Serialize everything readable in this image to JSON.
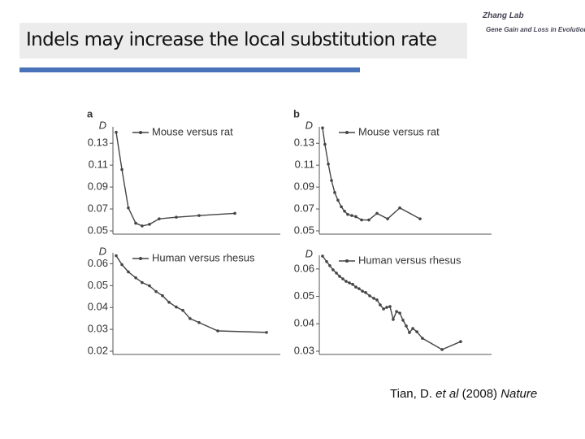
{
  "header": {
    "title": "Indels may increase the local substitution rate"
  },
  "logo": {
    "name": "Zhang Lab",
    "subtitle": "Gene Gain and Loss in Evolution"
  },
  "citation": [
    "Tian, D. ",
    "et al",
    " (2008) ",
    "Nature"
  ],
  "chart_data": [
    {
      "type": "line",
      "panel": "a",
      "ylabel": "D",
      "xlim": [
        0,
        100
      ],
      "ylim": [
        0.05,
        0.145
      ],
      "yticks": [
        0.05,
        0.07,
        0.09,
        0.11,
        0.13
      ],
      "series": [
        {
          "name": "Mouse versus rat",
          "color": "#444444",
          "x": [
            0,
            3.5,
            7.4,
            11.9,
            15.8,
            20.3,
            26.2,
            36.6,
            50.5,
            72.3
          ],
          "values": [
            0.14,
            0.106,
            0.071,
            0.057,
            0.0545,
            0.056,
            0.061,
            0.0625,
            0.064,
            0.066
          ]
        }
      ]
    },
    {
      "type": "line",
      "panel": "b",
      "ylabel": "D",
      "xlim": [
        0,
        100
      ],
      "ylim": [
        0.05,
        0.145
      ],
      "yticks": [
        0.05,
        0.07,
        0.09,
        0.11,
        0.13
      ],
      "series": [
        {
          "name": "Mouse versus rat",
          "color": "#444444",
          "x": [
            0,
            1.4,
            3.4,
            5.3,
            7.2,
            9.1,
            11.1,
            13.0,
            14.9,
            17.3,
            19.7,
            23.1,
            27.4,
            32.2,
            38.5,
            45.7,
            57.7
          ],
          "values": [
            0.144,
            0.129,
            0.111,
            0.096,
            0.085,
            0.078,
            0.072,
            0.068,
            0.065,
            0.064,
            0.063,
            0.06,
            0.06,
            0.066,
            0.061,
            0.071,
            0.061
          ]
        }
      ]
    },
    {
      "type": "line",
      "ylabel": "D",
      "xlim": [
        0,
        100
      ],
      "ylim": [
        0.02,
        0.065
      ],
      "yticks": [
        0.02,
        0.03,
        0.04,
        0.05,
        0.06
      ],
      "series": [
        {
          "name": "Human versus rhesus",
          "color": "#444444",
          "x": [
            0,
            3.5,
            7.4,
            11.9,
            15.8,
            20.3,
            24.3,
            28.2,
            32.2,
            36.6,
            40.6,
            45.0,
            50.5,
            61.9,
            91.6
          ],
          "values": [
            0.0637,
            0.0596,
            0.0563,
            0.0536,
            0.0514,
            0.0499,
            0.0473,
            0.0454,
            0.0424,
            0.0402,
            0.0387,
            0.0349,
            0.0331,
            0.0293,
            0.0286
          ]
        }
      ]
    },
    {
      "type": "line",
      "ylabel": "D",
      "xlim": [
        0,
        100
      ],
      "ylim": [
        0.03,
        0.065
      ],
      "yticks": [
        0.03,
        0.04,
        0.05,
        0.06
      ],
      "series": [
        {
          "name": "Human versus rhesus",
          "color": "#444444",
          "x": [
            0,
            2.4,
            4.3,
            6.2,
            8.2,
            10.1,
            12.0,
            13.9,
            15.9,
            17.8,
            19.7,
            21.6,
            23.6,
            25.5,
            27.9,
            30.3,
            32.2,
            34.1,
            36.1,
            38.0,
            39.9,
            41.8,
            43.8,
            45.7,
            47.6,
            49.5,
            51.4,
            53.4,
            55.8,
            59.1,
            70.7,
            81.7
          ],
          "values": [
            0.0647,
            0.0627,
            0.0612,
            0.0597,
            0.0585,
            0.0573,
            0.0564,
            0.0555,
            0.0549,
            0.0544,
            0.0534,
            0.0528,
            0.0519,
            0.0514,
            0.0502,
            0.0493,
            0.0487,
            0.0469,
            0.0454,
            0.046,
            0.0463,
            0.0416,
            0.0445,
            0.0439,
            0.0413,
            0.0392,
            0.0368,
            0.0383,
            0.0371,
            0.0347,
            0.0306,
            0.0335
          ]
        }
      ]
    }
  ]
}
